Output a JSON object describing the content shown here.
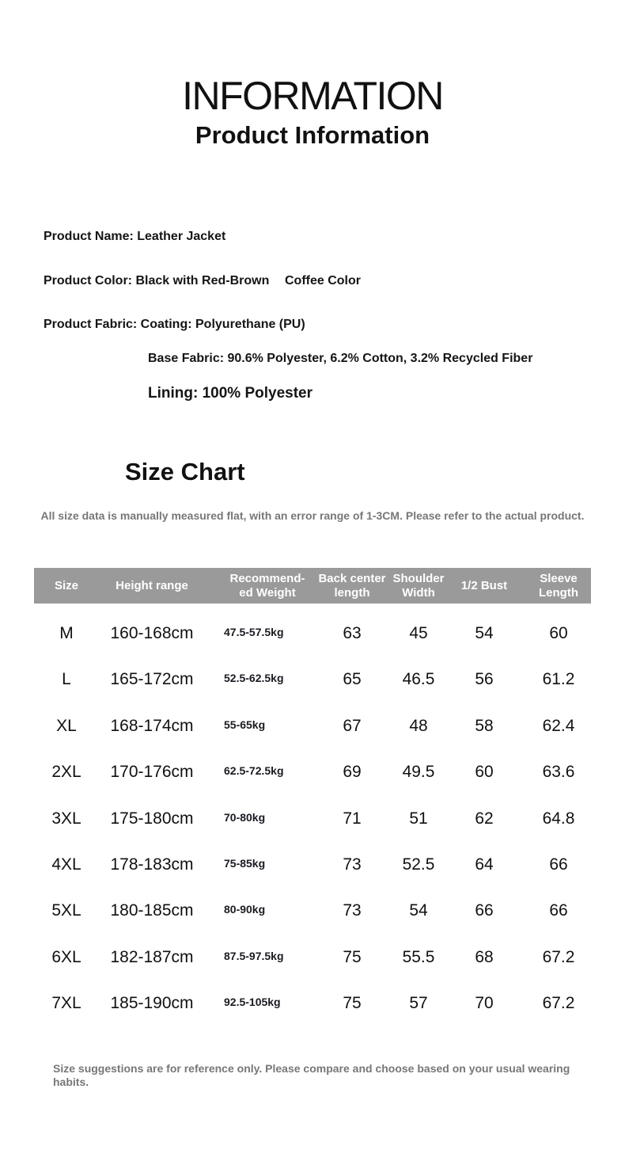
{
  "header": {
    "title": "INFORMATION",
    "subtitle": "Product Information"
  },
  "info": {
    "name": "Product Name: Leather Jacket",
    "color": "Product Color: Black with Red-Brown",
    "color2": "Coffee Color",
    "fabric": "Product Fabric: Coating: Polyurethane (PU)",
    "base": "Base Fabric: 90.6% Polyester, 6.2% Cotton, 3.2% Recycled Fiber",
    "lining": "Lining: 100% Polyester"
  },
  "size_chart": {
    "title": "Size Chart",
    "note": "All size data is manually measured flat, with an error range of 1-3CM. Please refer to the actual product.",
    "header_color": "#9a9a9a",
    "columns": [
      "Size",
      "Height range",
      "Recommend-\ned Weight",
      "Back center\nlength",
      "Shoulder\nWidth",
      "1/2 Bust",
      "Sleeve\nLength"
    ],
    "rows": [
      [
        "M",
        "160-168cm",
        "47.5-57.5kg",
        "63",
        "45",
        "54",
        "60"
      ],
      [
        "L",
        "165-172cm",
        "52.5-62.5kg",
        "65",
        "46.5",
        "56",
        "61.2"
      ],
      [
        "XL",
        "168-174cm",
        "55-65kg",
        "67",
        "48",
        "58",
        "62.4"
      ],
      [
        "2XL",
        "170-176cm",
        "62.5-72.5kg",
        "69",
        "49.5",
        "60",
        "63.6"
      ],
      [
        "3XL",
        "175-180cm",
        "70-80kg",
        "71",
        "51",
        "62",
        "64.8"
      ],
      [
        "4XL",
        "178-183cm",
        "75-85kg",
        "73",
        "52.5",
        "64",
        "66"
      ],
      [
        "5XL",
        "180-185cm",
        "80-90kg",
        "73",
        "54",
        "66",
        "66"
      ],
      [
        "6XL",
        "182-187cm",
        "87.5-97.5kg",
        "75",
        "55.5",
        "68",
        "67.2"
      ],
      [
        "7XL",
        "185-190cm",
        "92.5-105kg",
        "75",
        "57",
        "70",
        "67.2"
      ]
    ]
  },
  "footer": {
    "note": "Size suggestions are for reference only. Please compare and choose based on your usual wearing habits."
  }
}
